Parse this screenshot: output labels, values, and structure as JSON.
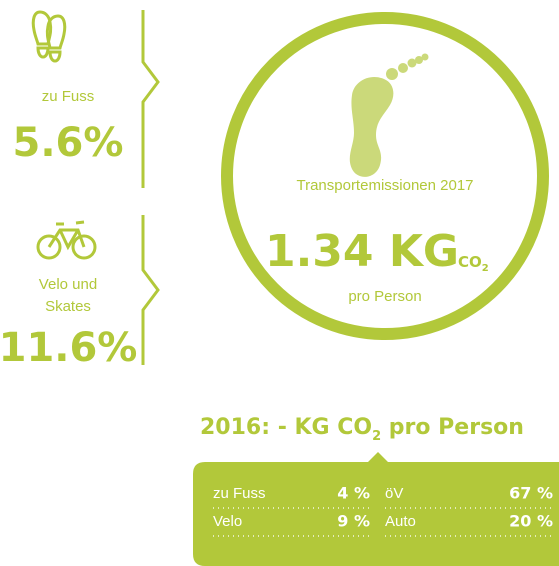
{
  "left": {
    "walk": {
      "label": "zu Fuss",
      "value": "5.6%"
    },
    "bike": {
      "label": [
        "Velo und",
        "Skates"
      ],
      "value": "11.6%"
    }
  },
  "circle": {
    "title": "Transportemissionen 2017",
    "amount": "1.34 KG",
    "unit": "CO",
    "unit_sub": "2",
    "per": "pro Person"
  },
  "comparison": {
    "title": "2016: - KG CO",
    "title_sub": "2",
    "title_rest": " pro Person",
    "rows": [
      [
        "zu Fuss",
        "4 %",
        "öV",
        "67 %"
      ],
      [
        "Velo",
        "9 %",
        "Auto",
        "20 %"
      ]
    ]
  }
}
